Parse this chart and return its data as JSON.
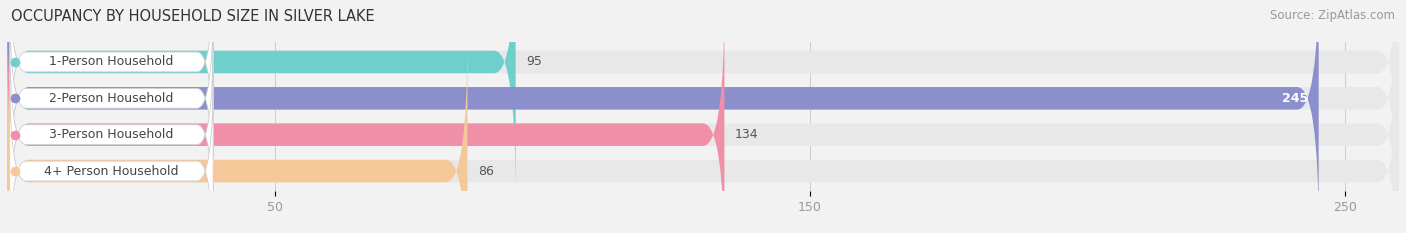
{
  "title": "OCCUPANCY BY HOUSEHOLD SIZE IN SILVER LAKE",
  "source": "Source: ZipAtlas.com",
  "categories": [
    "1-Person Household",
    "2-Person Household",
    "3-Person Household",
    "4+ Person Household"
  ],
  "values": [
    95,
    245,
    134,
    86
  ],
  "bar_colors": [
    "#6ecfcb",
    "#8b8fcc",
    "#f090a8",
    "#f5c899"
  ],
  "value_label_inside": [
    false,
    true,
    false,
    false
  ],
  "xlim": [
    0,
    260
  ],
  "xticks": [
    50,
    150,
    250
  ],
  "background_color": "#f2f2f2",
  "bar_background_color": "#e8e8e8",
  "title_fontsize": 10.5,
  "source_fontsize": 8.5,
  "tick_fontsize": 9,
  "bar_label_fontsize": 9,
  "value_fontsize": 9,
  "bar_height": 0.62,
  "figsize": [
    14.06,
    2.33
  ],
  "dpi": 100
}
